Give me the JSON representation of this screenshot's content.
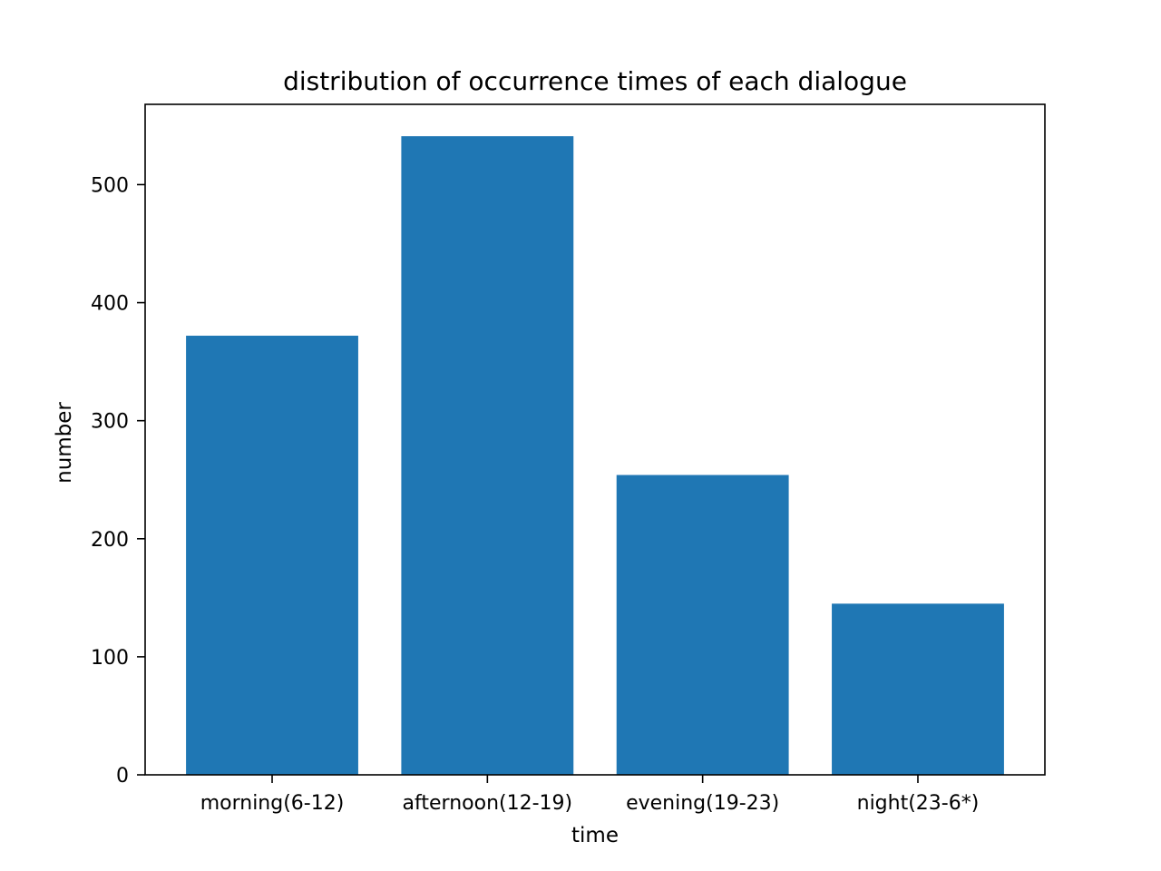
{
  "chart_data": {
    "type": "bar",
    "title": "distribution of occurrence times of each dialogue",
    "xlabel": "time",
    "ylabel": "number",
    "categories": [
      "morning(6-12)",
      "afternoon(12-19)",
      "evening(19-23)",
      "night(23-6*)"
    ],
    "values": [
      372,
      541,
      254,
      145
    ],
    "ylim": [
      0,
      568
    ],
    "yticks": [
      0,
      100,
      200,
      300,
      400,
      500
    ],
    "ytick_labels": [
      "0",
      "100",
      "200",
      "300",
      "400",
      "500"
    ],
    "bar_color": "#1f77b4",
    "grid": false,
    "legend": false
  }
}
